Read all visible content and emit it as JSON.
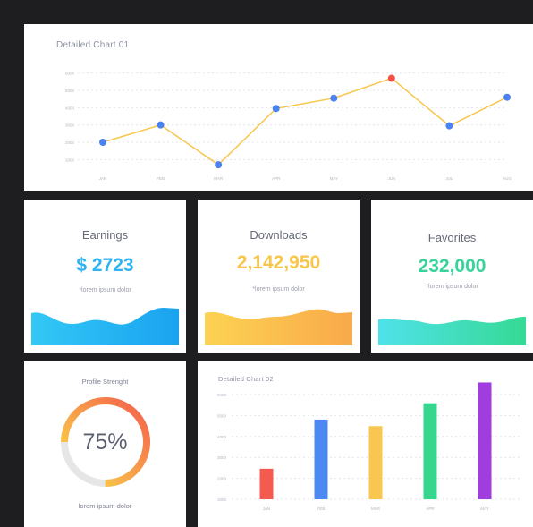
{
  "chart1": {
    "title": "Detailed Chart 01",
    "line_color": "#f8c64b",
    "point_color": "#4b82f2",
    "highlight_color": "#f25246",
    "chart_data": {
      "type": "line",
      "categories": [
        "JAN",
        "FEB",
        "MAR",
        "APR",
        "MAY",
        "JUN",
        "JUL",
        "AUG"
      ],
      "values": [
        2000,
        3000,
        700,
        3950,
        4550,
        5700,
        2950,
        4600
      ],
      "yticks": [
        1000,
        2000,
        3000,
        4000,
        5000,
        6000
      ],
      "ylim": [
        500,
        6500
      ],
      "highlight_index": 5,
      "grid": true
    }
  },
  "earnings": {
    "title": "Earnings",
    "value": "$ 2723",
    "note": "*lorem ipsum dolor",
    "color": "#2fb3f1",
    "gradient": [
      "#33c8f5",
      "#1aa3f0"
    ]
  },
  "downloads": {
    "title": "Downloads",
    "value": "2,142,950",
    "note": "*lorem ipsum dolor",
    "color": "#f8c64b",
    "gradient": [
      "#fcd352",
      "#f9a94b"
    ]
  },
  "favorites": {
    "title": "Favorites",
    "value": "232,000",
    "note": "*lorem ipsum dolor",
    "color": "#37d39a",
    "gradient": [
      "#4fe2ea",
      "#36d994"
    ]
  },
  "profile": {
    "title": "Profile Strenght",
    "value_label": "75%",
    "progress": 0.75,
    "note": "lorem ipsum dolor",
    "gradient": [
      "#fde24b",
      "#f7a54a",
      "#f45c4c"
    ],
    "track_color": "#e6e6e6"
  },
  "chart2": {
    "title": "Detailed Chart 02",
    "chart_data": {
      "type": "bar",
      "categories": [
        "JAN",
        "FEB",
        "MAR",
        "APR",
        "MAY"
      ],
      "values": [
        1400,
        3650,
        3350,
        4400,
        5350
      ],
      "colors": [
        "#f45a4d",
        "#4b8af2",
        "#f9c74f",
        "#36d68e",
        "#a13ddf"
      ],
      "yticks": [
        1000,
        2000,
        3000,
        4000,
        5000,
        6000
      ],
      "ylim": [
        0,
        5000
      ],
      "grid": true
    }
  }
}
